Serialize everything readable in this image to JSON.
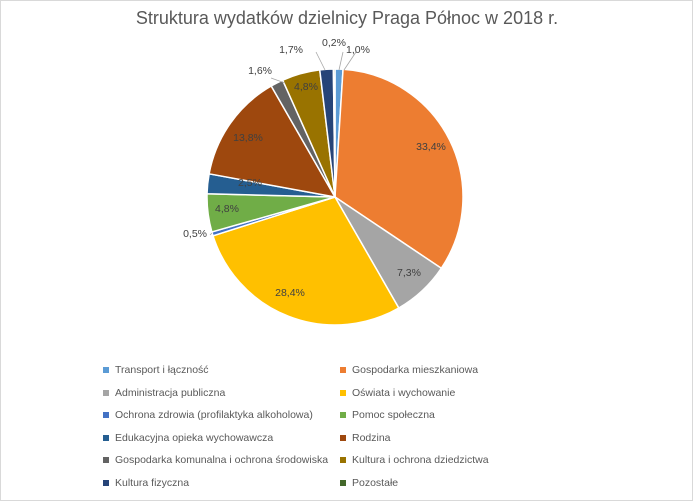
{
  "chart_data": {
    "type": "pie",
    "title": "Struktura wydatków dzielnicy Praga Północ w 2018 r.",
    "legend_position": "bottom",
    "slices": [
      {
        "name": "Transport i łączność",
        "value": 1.0,
        "label": "1,0%",
        "color": "#5b9bd5"
      },
      {
        "name": "Gospodarka mieszkaniowa",
        "value": 33.4,
        "label": "33,4%",
        "color": "#ed7d31"
      },
      {
        "name": "Administracja publiczna",
        "value": 7.3,
        "label": "7,3%",
        "color": "#a5a5a5"
      },
      {
        "name": "Oświata i wychowanie",
        "value": 28.4,
        "label": "28,4%",
        "color": "#ffc000"
      },
      {
        "name": "Ochrona zdrowia (profilaktyka alkoholowa)",
        "value": 0.5,
        "label": "0,5%",
        "color": "#4472c4"
      },
      {
        "name": "Pomoc społeczna",
        "value": 4.8,
        "label": "4,8%",
        "color": "#70ad47"
      },
      {
        "name": "Edukacyjna opieka wychowawcza",
        "value": 2.5,
        "label": "2,5%",
        "color": "#255e91"
      },
      {
        "name": "Rodzina",
        "value": 13.8,
        "label": "13,8%",
        "color": "#9e480e"
      },
      {
        "name": "Gospodarka komunalna i ochrona środowiska",
        "value": 1.6,
        "label": "1,6%",
        "color": "#636363"
      },
      {
        "name": "Kultura i ochrona dziedzictwa",
        "value": 4.8,
        "label": "4,8%",
        "color": "#997300"
      },
      {
        "name": "Kultura fizyczna",
        "value": 1.7,
        "label": "1,7%",
        "color": "#264478"
      },
      {
        "name": "Pozostałe",
        "value": 0.2,
        "label": "0,2%",
        "color": "#43682b"
      }
    ]
  }
}
